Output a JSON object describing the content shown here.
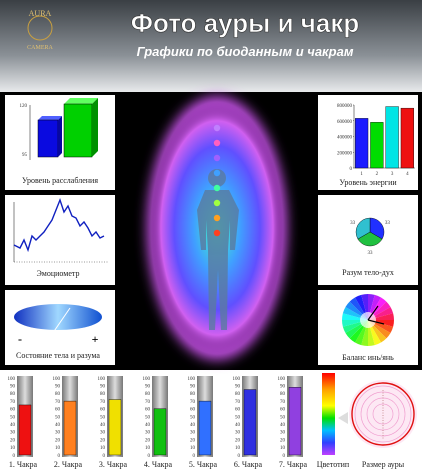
{
  "header": {
    "logo_top": "AURA",
    "logo_bottom": "CAMERA",
    "title": "Фото ауры и чакр",
    "subtitle": "Графики по биоданным и чакрам"
  },
  "relaxation": {
    "label_top": "120",
    "label_bottom": "95",
    "caption": "Уровень расслабления"
  },
  "emotiometer": {
    "caption": "Эмоциометр"
  },
  "body_mind": {
    "minus": "-",
    "plus": "+",
    "caption": "Состояние тела и разума"
  },
  "energy": {
    "caption": "Уровень энергии",
    "ylim": [
      0,
      800000
    ],
    "yticks": [
      0,
      200000,
      400000,
      600000,
      800000
    ],
    "categories": [
      "1",
      "2",
      "3",
      "4"
    ],
    "values": [
      630000,
      580000,
      780000,
      760000
    ],
    "colors": [
      "#1a1aff",
      "#00dd00",
      "#00e5e5",
      "#ee1111"
    ]
  },
  "mind_body_spirit": {
    "caption": "Разум тело-дух",
    "values": [
      33,
      33,
      33
    ],
    "colors": [
      "#2030ff",
      "#20c040",
      "#30c0d0"
    ]
  },
  "yin_yang": {
    "caption": "Баланс инь/янь"
  },
  "chakras": {
    "ylim": [
      0,
      100
    ],
    "ticks": [
      100,
      90,
      80,
      70,
      60,
      50,
      40,
      30,
      20,
      10,
      0
    ],
    "items": [
      {
        "name": "1. Чакра",
        "value": 65,
        "color": "#ee1111"
      },
      {
        "name": "2. Чакра",
        "value": 70,
        "color": "#ff8020"
      },
      {
        "name": "3. Чакра",
        "value": 72,
        "color": "#f0e000"
      },
      {
        "name": "4. Чакра",
        "value": 60,
        "color": "#10c010"
      },
      {
        "name": "5. Чакра",
        "value": 70,
        "color": "#3070ff"
      },
      {
        "name": "6. Чакра",
        "value": 85,
        "color": "#3030e0"
      },
      {
        "name": "7. Чакра",
        "value": 88,
        "color": "#9040e0"
      }
    ]
  },
  "color_type": {
    "caption": "Цветотип"
  },
  "aura_size": {
    "caption": "Размер ауры"
  }
}
